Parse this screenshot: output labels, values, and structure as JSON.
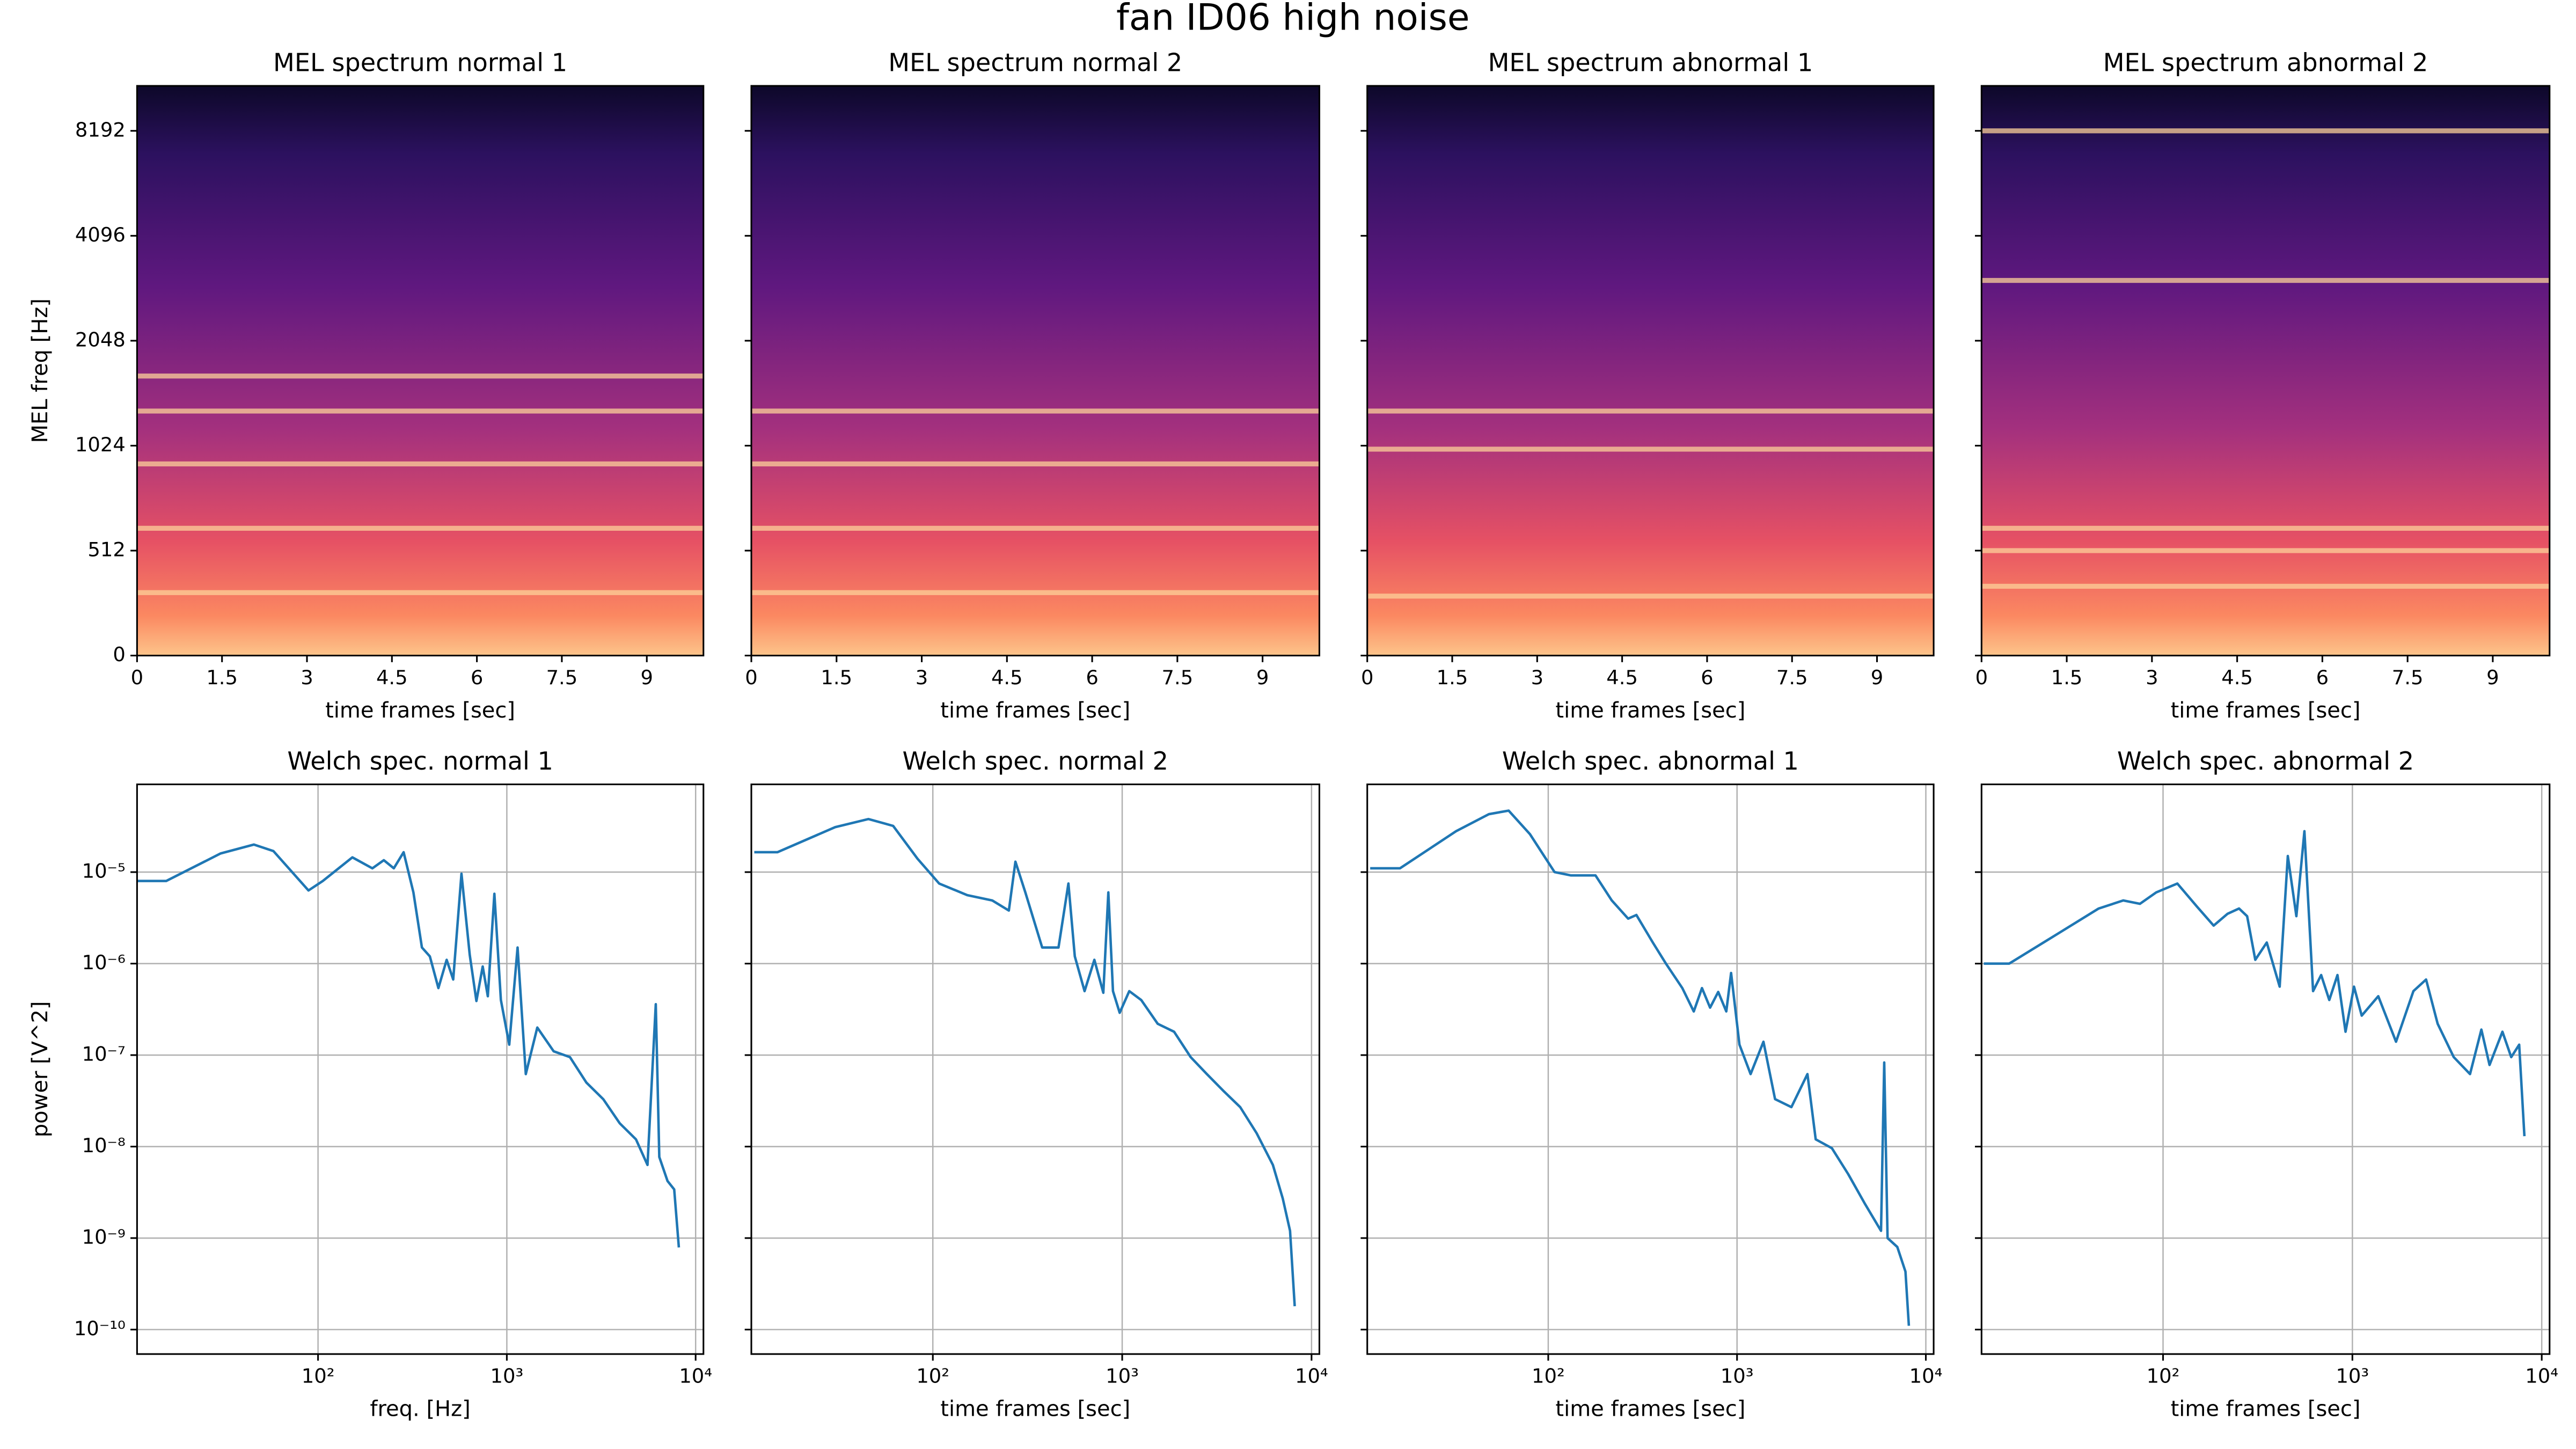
{
  "title": "fan ID06 high noise",
  "chart_data": [
    {
      "type": "spectrogram",
      "title": "MEL spectrum normal 1",
      "xlabel": "time frames [sec]",
      "ylabel": "MEL freq [Hz]",
      "xlim": [
        0,
        10
      ],
      "xticks": [
        0,
        1.5,
        3,
        4.5,
        6,
        7.5,
        9
      ],
      "ylim": [
        0,
        11025
      ],
      "yscale": "symlog",
      "linthresh": 1024,
      "yticks": [
        0,
        512,
        1024,
        2048,
        4096,
        8192
      ],
      "yticklabels": true,
      "colormap": "magma",
      "bands": [
        1622,
        1287,
        935,
        621,
        307
      ]
    },
    {
      "type": "spectrogram",
      "title": "MEL spectrum normal 2",
      "xlabel": "time frames [sec]",
      "xlim": [
        0,
        10
      ],
      "xticks": [
        0,
        1.5,
        3,
        4.5,
        6,
        7.5,
        9
      ],
      "ylim": [
        0,
        11025
      ],
      "yscale": "symlog",
      "linthresh": 1024,
      "yticks": [
        0,
        512,
        1024,
        2048,
        4096,
        8192
      ],
      "yticklabels": false,
      "colormap": "magma",
      "bands": [
        1287,
        935,
        621,
        307
      ]
    },
    {
      "type": "spectrogram",
      "title": "MEL spectrum abnormal 1",
      "xlabel": "time frames [sec]",
      "xlim": [
        0,
        10
      ],
      "xticks": [
        0,
        1.5,
        3,
        4.5,
        6,
        7.5,
        9
      ],
      "ylim": [
        0,
        11025
      ],
      "yscale": "symlog",
      "linthresh": 1024,
      "yticks": [
        0,
        512,
        1024,
        2048,
        4096,
        8192
      ],
      "yticklabels": false,
      "colormap": "magma",
      "bands": [
        1287,
        1007,
        290
      ]
    },
    {
      "type": "spectrogram",
      "title": "MEL spectrum abnormal 2",
      "xlabel": "time frames [sec]",
      "xlim": [
        0,
        10
      ],
      "xticks": [
        0,
        1.5,
        3,
        4.5,
        6,
        7.5,
        9
      ],
      "ylim": [
        0,
        11025
      ],
      "yscale": "symlog",
      "linthresh": 1024,
      "yticks": [
        0,
        512,
        1024,
        2048,
        4096,
        8192
      ],
      "yticklabels": false,
      "colormap": "magma",
      "bands": [
        8192,
        3050,
        621,
        512,
        338
      ]
    },
    {
      "type": "line",
      "title": "Welch spec. normal 1",
      "xlabel": "freq. [Hz]",
      "ylabel": "power [V^2]",
      "xscale": "log",
      "yscale": "log",
      "xlim": [
        11,
        11000
      ],
      "ylim": [
        5.4e-11,
        9.1e-05
      ],
      "grid": true,
      "yticklabels": true,
      "xticks": [
        {
          "value": 100,
          "label": "10²"
        },
        {
          "value": 1000,
          "label": "10³"
        },
        {
          "value": 10000,
          "label": "10⁴"
        }
      ],
      "yticks": [
        {
          "value": 1e-10,
          "label": "10⁻¹⁰"
        },
        {
          "value": 1e-09,
          "label": "10⁻⁹"
        },
        {
          "value": 1e-08,
          "label": "10⁻⁸"
        },
        {
          "value": 1e-07,
          "label": "10⁻⁷"
        },
        {
          "value": 1e-06,
          "label": "10⁻⁶"
        },
        {
          "value": 1e-05,
          "label": "10⁻⁵"
        }
      ],
      "series": [
        {
          "color": "#1f77b4",
          "x": [
            11,
            15.7,
            30.5,
            45.7,
            58,
            89,
            106,
            152,
            194,
            223,
            252,
            284,
            320,
            355,
            391,
            434,
            480,
            520,
            575,
            636,
            690,
            745,
            793,
            859,
            930,
            1030,
            1140,
            1260,
            1450,
            1770,
            2160,
            2640,
            3240,
            3960,
            4830,
            5560,
            6150,
            6420,
            7100,
            7700,
            8150
          ],
          "values": [
            8e-06,
            8e-06,
            1.6e-05,
            2e-05,
            1.7e-05,
            6.3e-06,
            8e-06,
            1.45e-05,
            1.1e-05,
            1.35e-05,
            1.1e-05,
            1.65e-05,
            6e-06,
            1.5e-06,
            1.2e-06,
            5.4e-07,
            1.1e-06,
            6.7e-07,
            9.6e-06,
            1.25e-06,
            3.9e-07,
            9.3e-07,
            4.4e-07,
            5.8e-06,
            4e-07,
            1.3e-07,
            1.5e-06,
            6.2e-08,
            2e-07,
            1.1e-07,
            9.5e-08,
            5e-08,
            3.3e-08,
            1.8e-08,
            1.2e-08,
            6.3e-09,
            3.6e-07,
            7.7e-09,
            4.2e-09,
            3.4e-09,
            7.9e-10
          ]
        }
      ]
    },
    {
      "type": "line",
      "title": "Welch spec. normal 2",
      "xlabel": "time frames [sec]",
      "xscale": "log",
      "yscale": "log",
      "xlim": [
        11,
        11000
      ],
      "ylim": [
        5.4e-11,
        9.1e-05
      ],
      "grid": true,
      "yticklabels": false,
      "xticks": [
        {
          "value": 100,
          "label": "10²"
        },
        {
          "value": 1000,
          "label": "10³"
        },
        {
          "value": 10000,
          "label": "10⁴"
        }
      ],
      "yticks": [
        1e-10,
        1e-09,
        1e-08,
        1e-07,
        1e-06,
        1e-05
      ],
      "series": [
        {
          "color": "#1f77b4",
          "x": [
            11.4,
            15.1,
            30.5,
            45.7,
            61.7,
            83,
            108,
            152,
            206,
            252,
            273,
            308,
            378,
            461,
            520,
            562,
            633,
            713,
            795,
            845,
            894,
            970,
            1090,
            1260,
            1540,
            1880,
            2300,
            2800,
            3450,
            4200,
            5130,
            6250,
            7050,
            7700,
            8150
          ],
          "values": [
            1.65e-05,
            1.65e-05,
            3.1e-05,
            3.8e-05,
            3.2e-05,
            1.4e-05,
            7.5e-06,
            5.6e-06,
            4.9e-06,
            3.8e-06,
            1.3e-05,
            6e-06,
            1.5e-06,
            1.5e-06,
            7.5e-06,
            1.2e-06,
            5e-07,
            1.1e-06,
            4.8e-07,
            6e-06,
            5e-07,
            2.9e-07,
            5e-07,
            4e-07,
            2.2e-07,
            1.8e-07,
            9.5e-08,
            6.2e-08,
            4e-08,
            2.7e-08,
            1.4e-08,
            6.3e-09,
            2.7e-09,
            1.2e-09,
            1.8e-10
          ]
        }
      ]
    },
    {
      "type": "line",
      "title": "Welch spec. abnormal 1",
      "xlabel": "time frames [sec]",
      "xscale": "log",
      "yscale": "log",
      "xlim": [
        11,
        11000
      ],
      "ylim": [
        5.4e-11,
        9.1e-05
      ],
      "grid": true,
      "yticklabels": false,
      "xticks": [
        {
          "value": 100,
          "label": "10²"
        },
        {
          "value": 1000,
          "label": "10³"
        },
        {
          "value": 10000,
          "label": "10⁴"
        }
      ],
      "yticks": [
        1e-10,
        1e-09,
        1e-08,
        1e-07,
        1e-06,
        1e-05
      ],
      "series": [
        {
          "color": "#1f77b4",
          "x": [
            11.4,
            16.4,
            32.5,
            48.5,
            61.7,
            80,
            108,
            132,
            178,
            217,
            265,
            293,
            358,
            420,
            513,
            590,
            652,
            720,
            795,
            877,
            930,
            1030,
            1180,
            1380,
            1590,
            1940,
            2360,
            2610,
            3180,
            3880,
            4740,
            5790,
            6020,
            6270,
            7060,
            7800,
            8130
          ],
          "values": [
            1.1e-05,
            1.1e-05,
            2.8e-05,
            4.3e-05,
            4.7e-05,
            2.6e-05,
            1e-05,
            9.2e-06,
            9.2e-06,
            4.9e-06,
            3.1e-06,
            3.4e-06,
            1.7e-06,
            1e-06,
            5.4e-07,
            3e-07,
            5.4e-07,
            3.3e-07,
            4.9e-07,
            3e-07,
            7.9e-07,
            1.3e-07,
            6.2e-08,
            1.4e-07,
            3.3e-08,
            2.7e-08,
            6.2e-08,
            1.2e-08,
            9.6e-09,
            5e-09,
            2.4e-09,
            1.2e-09,
            8.3e-08,
            1e-09,
            8e-10,
            4.3e-10,
            1.1e-10
          ]
        }
      ]
    },
    {
      "type": "line",
      "title": "Welch spec. abnormal 2",
      "xlabel": "time frames [sec]",
      "xscale": "log",
      "yscale": "log",
      "xlim": [
        11,
        11000
      ],
      "ylim": [
        5.4e-11,
        9.1e-05
      ],
      "grid": true,
      "yticklabels": false,
      "xticks": [
        {
          "value": 100,
          "label": "10²"
        },
        {
          "value": 1000,
          "label": "10³"
        },
        {
          "value": 10000,
          "label": "10⁴"
        }
      ],
      "yticks": [
        1e-10,
        1e-09,
        1e-08,
        1e-07,
        1e-06,
        1e-05
      ],
      "series": [
        {
          "color": "#1f77b4",
          "x": [
            11.3,
            15.4,
            27.6,
            45.7,
            61.7,
            75.5,
            92,
            119,
            151,
            185,
            219,
            252,
            278,
            307,
            353,
            413,
            456,
            506,
            558,
            620,
            684,
            755,
            834,
            920,
            1020,
            1120,
            1370,
            1700,
            2100,
            2450,
            2820,
            3430,
            4180,
            4800,
            5300,
            6200,
            6900,
            7600,
            8100
          ],
          "values": [
            1e-06,
            1e-06,
            2.1e-06,
            4e-06,
            4.9e-06,
            4.5e-06,
            6e-06,
            7.5e-06,
            4.2e-06,
            2.6e-06,
            3.5e-06,
            4e-06,
            3.3e-06,
            1.1e-06,
            1.7e-06,
            5.6e-07,
            1.5e-05,
            3.3e-06,
            2.8e-05,
            5e-07,
            7.5e-07,
            4e-07,
            7.5e-07,
            1.8e-07,
            5.6e-07,
            2.7e-07,
            4.4e-07,
            1.4e-07,
            5e-07,
            6.7e-07,
            2.2e-07,
            9.5e-08,
            6.2e-08,
            1.9e-07,
            7.8e-08,
            1.8e-07,
            9.5e-08,
            1.3e-07,
            1.3e-08
          ]
        }
      ]
    }
  ]
}
